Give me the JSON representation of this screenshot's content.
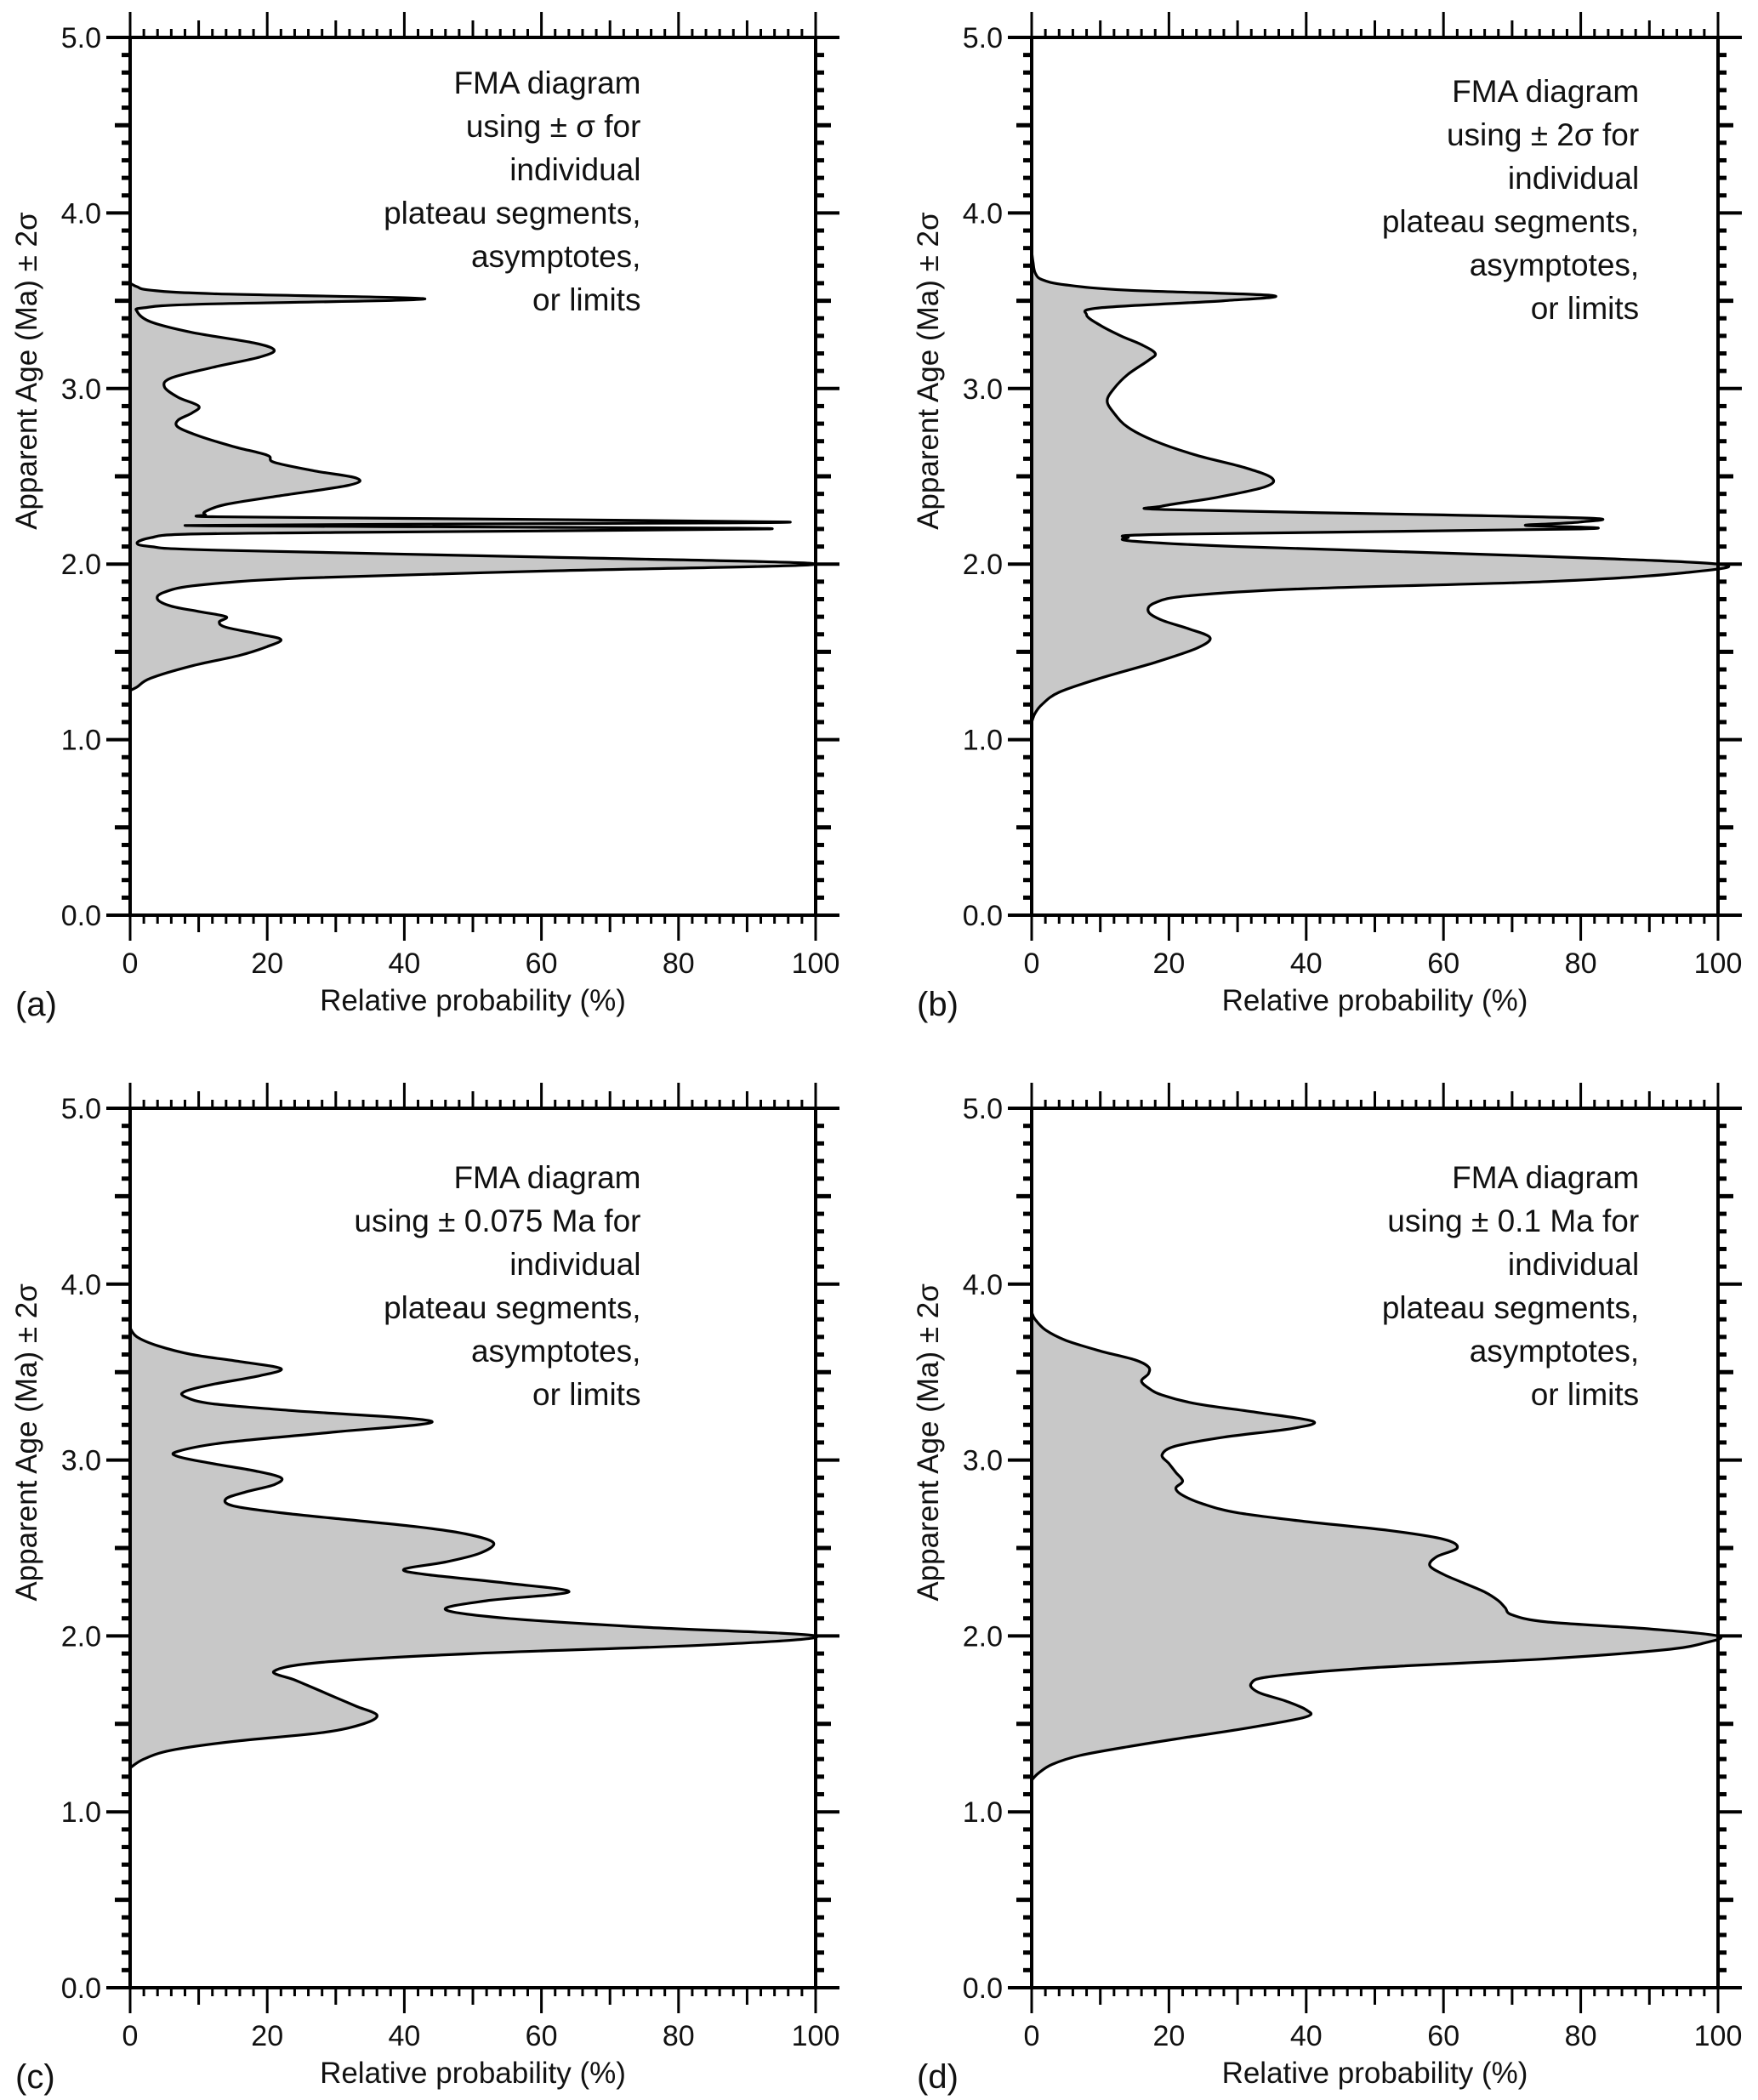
{
  "chart_data": [
    {
      "panel": "(a)",
      "type": "area",
      "orientation": "horizontal-profile",
      "xlabel": "Relative probability (%)",
      "ylabel": "Apparent Age (Ma) ± 2σ",
      "xlim": [
        0,
        100
      ],
      "ylim": [
        0,
        5
      ],
      "xticks": [
        "0",
        "20",
        "40",
        "60",
        "80",
        "100"
      ],
      "yticks": [
        "0.0",
        "1.0",
        "2.0",
        "3.0",
        "4.0",
        "5.0"
      ],
      "annotation": [
        "FMA diagram",
        "using ± σ for",
        "individual",
        "plateau segments,",
        "asymptotes,",
        "or limits"
      ],
      "fill_color": "#c8c8c8",
      "line_color": "#000000",
      "profile": {
        "age": [
          1.28,
          1.3,
          1.35,
          1.42,
          1.48,
          1.53,
          1.57,
          1.6,
          1.64,
          1.67,
          1.7,
          1.73,
          1.76,
          1.8,
          1.84,
          1.88,
          1.92,
          1.96,
          2.0,
          2.04,
          2.08,
          2.1,
          2.12,
          2.15,
          2.17,
          2.18,
          2.2,
          2.21,
          2.22,
          2.23,
          2.24,
          2.26,
          2.27,
          2.28,
          2.3,
          2.34,
          2.39,
          2.45,
          2.49,
          2.53,
          2.58,
          2.62,
          2.67,
          2.73,
          2.78,
          2.82,
          2.86,
          2.9,
          2.95,
          3.01,
          3.06,
          3.12,
          3.18,
          3.22,
          3.26,
          3.32,
          3.38,
          3.44,
          3.46,
          3.48,
          3.51,
          3.54,
          3.56,
          3.58,
          3.6
        ],
        "prob": [
          0,
          1,
          3,
          9,
          16,
          20,
          22,
          19,
          14,
          13,
          14,
          10,
          6,
          4,
          5,
          10,
          25,
          60,
          100,
          60,
          12,
          3,
          1,
          3,
          8,
          30,
          93,
          60,
          8,
          60,
          96,
          40,
          12,
          11,
          11,
          14,
          22,
          32,
          33,
          27,
          21,
          20,
          15,
          10,
          7,
          7,
          9,
          10,
          7,
          5,
          6,
          12,
          19,
          21,
          18,
          9,
          3,
          1,
          2,
          10,
          43,
          12,
          3,
          1,
          0
        ]
      }
    },
    {
      "panel": "(b)",
      "type": "area",
      "orientation": "horizontal-profile",
      "xlabel": "Relative probability (%)",
      "ylabel": "Apparent Age (Ma) ± 2σ",
      "xlim": [
        0,
        100
      ],
      "ylim": [
        0,
        5
      ],
      "xticks": [
        "0",
        "20",
        "40",
        "60",
        "80",
        "100"
      ],
      "yticks": [
        "0.0",
        "1.0",
        "2.0",
        "3.0",
        "4.0",
        "5.0"
      ],
      "annotation": [
        "FMA diagram",
        "using ± 2σ for",
        "individual",
        "plateau segments,",
        "asymptotes,",
        "or limits"
      ],
      "fill_color": "#c8c8c8",
      "line_color": "#000000",
      "profile": {
        "age": [
          1.1,
          1.15,
          1.2,
          1.27,
          1.35,
          1.44,
          1.52,
          1.58,
          1.63,
          1.68,
          1.73,
          1.78,
          1.82,
          1.86,
          1.9,
          1.95,
          2.0,
          2.05,
          2.1,
          2.13,
          2.15,
          2.17,
          2.2,
          2.22,
          2.23,
          2.24,
          2.26,
          2.28,
          2.31,
          2.33,
          2.38,
          2.44,
          2.49,
          2.55,
          2.62,
          2.7,
          2.78,
          2.86,
          2.93,
          3.0,
          3.08,
          3.16,
          3.2,
          3.25,
          3.3,
          3.36,
          3.42,
          3.46,
          3.5,
          3.53,
          3.56,
          3.59,
          3.62,
          3.66,
          3.72,
          3.78
        ],
        "prob": [
          0,
          0.5,
          1.5,
          4,
          10,
          18,
          24,
          26,
          23,
          19,
          17,
          18,
          23,
          40,
          75,
          95,
          100,
          70,
          30,
          15,
          14,
          20,
          80,
          72,
          76,
          80,
          82,
          60,
          20,
          19,
          27,
          34,
          35,
          31,
          24,
          18,
          14,
          12,
          11,
          12,
          14,
          17,
          18,
          16,
          13,
          10,
          8,
          10,
          28,
          35,
          14,
          5,
          1.5,
          0.5,
          0.2,
          0
        ]
      }
    },
    {
      "panel": "(c)",
      "type": "area",
      "orientation": "horizontal-profile",
      "xlabel": "Relative probability (%)",
      "ylabel": "Apparent Age (Ma) ± 2σ",
      "xlim": [
        0,
        100
      ],
      "ylim": [
        0,
        5
      ],
      "xticks": [
        "0",
        "20",
        "40",
        "60",
        "80",
        "100"
      ],
      "yticks": [
        "0.0",
        "1.0",
        "2.0",
        "3.0",
        "4.0",
        "5.0"
      ],
      "annotation": [
        "FMA diagram",
        "using ± 0.075 Ma for",
        "individual",
        "plateau segments,",
        "asymptotes,",
        "or limits"
      ],
      "fill_color": "#c8c8c8",
      "line_color": "#000000",
      "profile": {
        "age": [
          1.25,
          1.3,
          1.35,
          1.4,
          1.45,
          1.5,
          1.55,
          1.6,
          1.65,
          1.7,
          1.75,
          1.8,
          1.85,
          1.9,
          1.95,
          2.0,
          2.05,
          2.1,
          2.15,
          2.2,
          2.25,
          2.3,
          2.35,
          2.38,
          2.42,
          2.47,
          2.53,
          2.58,
          2.62,
          2.66,
          2.7,
          2.74,
          2.78,
          2.82,
          2.86,
          2.9,
          2.94,
          2.98,
          3.02,
          3.05,
          3.1,
          3.16,
          3.22,
          3.28,
          3.32,
          3.36,
          3.39,
          3.43,
          3.48,
          3.52,
          3.56,
          3.6,
          3.65,
          3.7,
          3.75
        ],
        "prob": [
          0,
          2,
          6,
          15,
          28,
          34,
          36,
          33,
          30,
          27,
          24,
          21,
          28,
          50,
          85,
          100,
          75,
          55,
          46,
          52,
          64,
          55,
          43,
          40,
          46,
          51,
          53,
          49,
          42,
          32,
          22,
          15,
          14,
          17,
          21,
          22,
          18,
          12,
          7,
          7,
          14,
          30,
          44,
          24,
          12,
          8,
          8,
          12,
          19,
          22,
          16,
          9,
          4,
          1,
          0
        ]
      }
    },
    {
      "panel": "(d)",
      "type": "area",
      "orientation": "horizontal-profile",
      "xlabel": "Relative probability (%)",
      "ylabel": "Apparent Age (Ma) ± 2σ",
      "xlim": [
        0,
        100
      ],
      "ylim": [
        0,
        5
      ],
      "xticks": [
        "0",
        "20",
        "40",
        "60",
        "80",
        "100"
      ],
      "yticks": [
        "0.0",
        "1.0",
        "2.0",
        "3.0",
        "4.0",
        "5.0"
      ],
      "annotation": [
        "FMA diagram",
        "using ± 0.1 Ma for",
        "individual",
        "plateau segments,",
        "asymptotes,",
        "or limits"
      ],
      "fill_color": "#c8c8c8",
      "line_color": "#000000",
      "profile": {
        "age": [
          1.18,
          1.22,
          1.27,
          1.32,
          1.37,
          1.42,
          1.48,
          1.54,
          1.58,
          1.63,
          1.68,
          1.73,
          1.77,
          1.82,
          1.87,
          1.92,
          1.96,
          2.0,
          2.04,
          2.08,
          2.12,
          2.16,
          2.2,
          2.25,
          2.3,
          2.35,
          2.4,
          2.45,
          2.5,
          2.55,
          2.6,
          2.65,
          2.7,
          2.75,
          2.8,
          2.84,
          2.88,
          2.93,
          2.98,
          3.03,
          3.08,
          3.13,
          3.18,
          3.22,
          3.27,
          3.32,
          3.37,
          3.41,
          3.45,
          3.49,
          3.53,
          3.57,
          3.62,
          3.68,
          3.74,
          3.8,
          3.84
        ],
        "prob": [
          0,
          1,
          3,
          7,
          14,
          22,
          32,
          40,
          40,
          37,
          33,
          32,
          35,
          50,
          75,
          92,
          98,
          100,
          90,
          75,
          70,
          69,
          68,
          66,
          63,
          60,
          58,
          59,
          62,
          60,
          52,
          40,
          30,
          25,
          22,
          21,
          22,
          21,
          20,
          19,
          21,
          28,
          38,
          41,
          33,
          24,
          19,
          17,
          16,
          17,
          17,
          15,
          10,
          5,
          2,
          0.5,
          0
        ]
      }
    }
  ]
}
